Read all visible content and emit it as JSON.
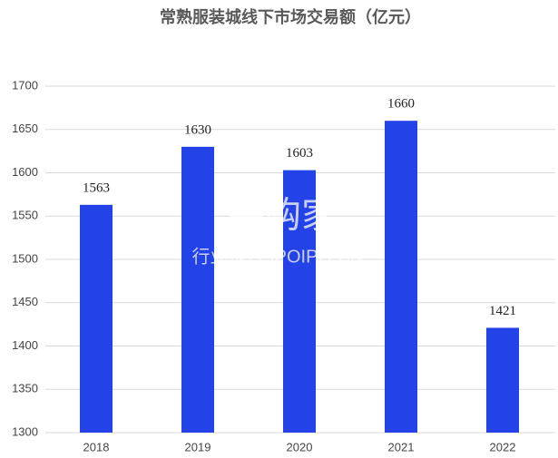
{
  "chart_data": {
    "type": "bar",
    "title": "常熟服装城线下市场交易额（亿元）",
    "categories": [
      "2018",
      "2019",
      "2020",
      "2021",
      "2022"
    ],
    "values": [
      1563,
      1630,
      1603,
      1660,
      1421
    ],
    "color": "#2342e8",
    "ylim": [
      1300,
      1700
    ],
    "yticks": [
      1300,
      1350,
      1400,
      1450,
      1500,
      1550,
      1600,
      1650,
      1700
    ],
    "grid": true,
    "watermark": [
      "并购家",
      "行业报告 IPOIPO.CN"
    ]
  }
}
